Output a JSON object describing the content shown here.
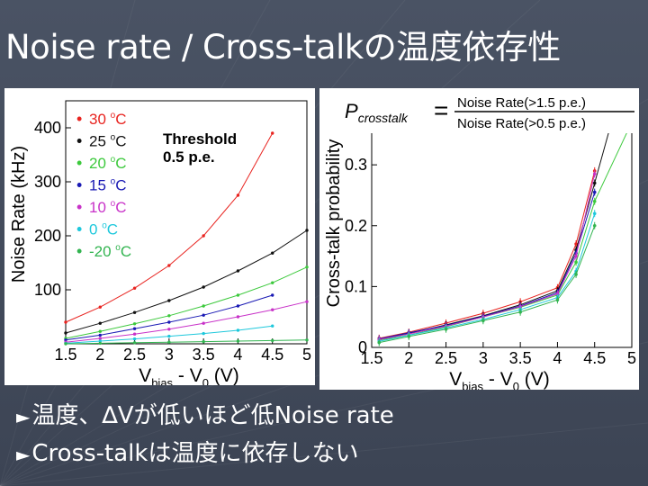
{
  "slide": {
    "title": "Noise rate / Cross-talkの温度依存性",
    "bullets": [
      {
        "marker": "►",
        "text": "温度、∆Vが低いほど低Noise rate"
      },
      {
        "marker": "►",
        "text": "Cross-talkは温度に依存しない"
      }
    ]
  },
  "chart_data": [
    {
      "type": "scatter",
      "ylabel": "Noise Rate (kHz)",
      "xlabel_parts": {
        "v": "V",
        "sub": "bias",
        "mid": " - V",
        "sub2": "0",
        "unit": " (V)"
      },
      "x_ticks": [
        "1.5",
        "2",
        "2.5",
        "3",
        "3.5",
        "4",
        "4.5",
        "5"
      ],
      "y_ticks": [
        "100",
        "200",
        "300",
        "400"
      ],
      "xlim": [
        1.5,
        5
      ],
      "ylim": [
        0,
        450
      ],
      "annotation": [
        "Threshold",
        "0.5 p.e."
      ],
      "legend_placement": "top-left",
      "series": [
        {
          "name": "30 oC",
          "label_num": "30",
          "color": "#e8231f",
          "x": [
            1.5,
            2.0,
            2.5,
            3.0,
            3.5,
            4.0,
            4.5
          ],
          "y": [
            40,
            68,
            103,
            145,
            200,
            275,
            390
          ]
        },
        {
          "name": "25 oC",
          "label_num": "25",
          "color": "#111111",
          "x": [
            1.5,
            2.0,
            2.5,
            3.0,
            3.5,
            4.0,
            4.5,
            5.0
          ],
          "y": [
            20,
            38,
            58,
            80,
            105,
            135,
            168,
            210
          ]
        },
        {
          "name": "20 oC",
          "label_num": "20",
          "color": "#3cc93c",
          "x": [
            1.5,
            2.0,
            2.5,
            3.0,
            3.5,
            4.0,
            4.5,
            5.0
          ],
          "y": [
            10,
            23,
            37,
            52,
            70,
            90,
            113,
            142
          ]
        },
        {
          "name": "15 oC",
          "label_num": "15",
          "color": "#1a1ab4",
          "x": [
            1.5,
            2.0,
            2.5,
            3.0,
            3.5,
            4.0,
            4.5
          ],
          "y": [
            7,
            16,
            28,
            40,
            53,
            70,
            90
          ]
        },
        {
          "name": "10 oC",
          "label_num": "10",
          "color": "#c832c8",
          "x": [
            1.5,
            2.0,
            2.5,
            3.0,
            3.5,
            4.0,
            4.5,
            5.0
          ],
          "y": [
            3,
            10,
            18,
            27,
            38,
            50,
            63,
            78
          ]
        },
        {
          "name": "0 oC",
          "label_num": "0",
          "color": "#1ec8dc",
          "x": [
            1.5,
            2.0,
            2.5,
            3.0,
            3.5,
            4.0,
            4.5
          ],
          "y": [
            1,
            5,
            9,
            14,
            19,
            25,
            33
          ]
        },
        {
          "name": "-20 oC",
          "label_num": "-20",
          "color": "#32b450",
          "x": [
            1.5,
            2.0,
            2.5,
            3.0,
            3.5,
            4.0,
            4.5,
            5.0
          ],
          "y": [
            0,
            1,
            2,
            3,
            4,
            5,
            6,
            7
          ]
        }
      ]
    },
    {
      "type": "scatter",
      "ylabel": "Cross-talk probability",
      "xlabel_parts": {
        "v": "V",
        "sub": "bias",
        "mid": " - V",
        "sub2": "0",
        "unit": " (V)"
      },
      "x_ticks": [
        "1.5",
        "2",
        "2.5",
        "3",
        "3.5",
        "4",
        "4.5",
        "5"
      ],
      "y_ticks": [
        "0",
        "0.1",
        "0.2",
        "0.3"
      ],
      "xlim": [
        1.5,
        5
      ],
      "ylim": [
        0,
        0.42
      ],
      "formula": {
        "lhs": "P",
        "lhs_sub": "crosstalk",
        "eq": "=",
        "num": "Noise Rate(>1.5 p.e.)",
        "den": "Noise Rate(>0.5 p.e.)"
      },
      "series": [
        {
          "name": "30 oC",
          "color": "#e8231f",
          "x": [
            1.6,
            2.0,
            2.5,
            3.0,
            3.5,
            4.0,
            4.25,
            4.5
          ],
          "y": [
            0.015,
            0.025,
            0.04,
            0.056,
            0.075,
            0.098,
            0.17,
            0.29
          ]
        },
        {
          "name": "25 oC",
          "color": "#111111",
          "x": [
            1.6,
            2.0,
            2.5,
            3.0,
            3.5,
            4.0,
            4.25,
            4.5,
            4.75
          ],
          "y": [
            0.013,
            0.023,
            0.037,
            0.052,
            0.07,
            0.093,
            0.16,
            0.27,
            0.38
          ]
        },
        {
          "name": "20 oC",
          "color": "#3cc93c",
          "x": [
            1.6,
            2.0,
            2.5,
            3.0,
            3.5,
            4.0,
            4.25,
            4.5,
            5.0
          ],
          "y": [
            0.012,
            0.02,
            0.034,
            0.05,
            0.066,
            0.086,
            0.14,
            0.24,
            0.37
          ]
        },
        {
          "name": "15 oC",
          "color": "#1a1ab4",
          "x": [
            1.6,
            2.0,
            2.5,
            3.0,
            3.5,
            4.0,
            4.25,
            4.5
          ],
          "y": [
            0.014,
            0.024,
            0.036,
            0.051,
            0.068,
            0.09,
            0.155,
            0.255
          ]
        },
        {
          "name": "10 oC",
          "color": "#c832c8",
          "x": [
            1.6,
            2.0,
            2.5,
            3.0,
            3.5,
            4.0,
            4.25,
            4.5
          ],
          "y": [
            0.013,
            0.022,
            0.035,
            0.05,
            0.067,
            0.088,
            0.15,
            0.285
          ]
        },
        {
          "name": "0 oC",
          "color": "#1ec8dc",
          "x": [
            1.6,
            2.0,
            2.5,
            3.0,
            3.5,
            4.0,
            4.25,
            4.5
          ],
          "y": [
            0.01,
            0.02,
            0.032,
            0.046,
            0.062,
            0.082,
            0.125,
            0.22
          ]
        },
        {
          "name": "-20 oC",
          "color": "#32b450",
          "x": [
            1.6,
            2.0,
            2.5,
            3.0,
            3.5,
            4.0,
            4.25,
            4.5
          ],
          "y": [
            0.008,
            0.018,
            0.03,
            0.044,
            0.058,
            0.078,
            0.12,
            0.2
          ]
        }
      ]
    }
  ]
}
